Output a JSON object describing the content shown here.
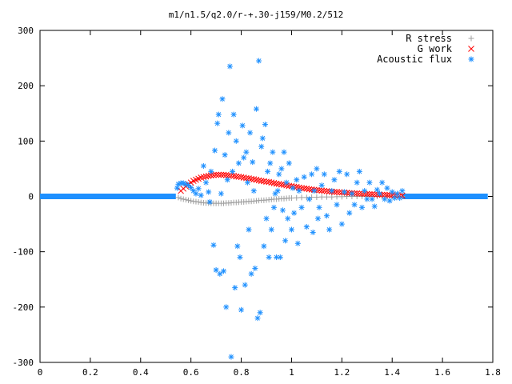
{
  "chart_data": {
    "type": "scatter",
    "title": "m1/n1.5/q2.0/r-+.30-j159/M0.2/512",
    "xlabel": "",
    "ylabel": "",
    "xlim": [
      0,
      1.8
    ],
    "ylim": [
      -300,
      300
    ],
    "x_ticks": [
      0,
      0.2,
      0.4,
      0.6,
      0.8,
      1,
      1.2,
      1.4,
      1.6,
      1.8
    ],
    "x_tick_labels": [
      "0",
      "0.2",
      "0.4",
      "0.6",
      "0.8",
      "1",
      "1.2",
      "1.4",
      "1.6",
      "1.8"
    ],
    "y_ticks": [
      -300,
      -200,
      -100,
      0,
      100,
      200,
      300
    ],
    "y_tick_labels": [
      "-300",
      "-200",
      "-100",
      "0",
      "100",
      "200",
      "300"
    ],
    "grid": false,
    "legend_position": "top-right",
    "series": [
      {
        "name": "R stress",
        "marker": "plus",
        "color": "#a0a0a0",
        "points": [
          [
            0.55,
            -2
          ],
          [
            0.56,
            -4
          ],
          [
            0.57,
            -5
          ],
          [
            0.58,
            -6
          ],
          [
            0.59,
            -7
          ],
          [
            0.6,
            -8
          ],
          [
            0.61,
            -9
          ],
          [
            0.62,
            -9.5
          ],
          [
            0.63,
            -10
          ],
          [
            0.64,
            -11
          ],
          [
            0.65,
            -11.5
          ],
          [
            0.66,
            -12
          ],
          [
            0.67,
            -12
          ],
          [
            0.68,
            -12.5
          ],
          [
            0.69,
            -12.5
          ],
          [
            0.7,
            -12.5
          ],
          [
            0.71,
            -12.5
          ],
          [
            0.72,
            -12.5
          ],
          [
            0.73,
            -12.5
          ],
          [
            0.74,
            -12
          ],
          [
            0.75,
            -12
          ],
          [
            0.76,
            -11.5
          ],
          [
            0.77,
            -11
          ],
          [
            0.78,
            -11
          ],
          [
            0.79,
            -10.5
          ],
          [
            0.8,
            -10
          ],
          [
            0.81,
            -10
          ],
          [
            0.82,
            -9.5
          ],
          [
            0.83,
            -9
          ],
          [
            0.84,
            -9
          ],
          [
            0.85,
            -8.5
          ],
          [
            0.86,
            -8
          ],
          [
            0.87,
            -7.5
          ],
          [
            0.88,
            -7
          ],
          [
            0.89,
            -7
          ],
          [
            0.9,
            -6.5
          ],
          [
            0.91,
            -6
          ],
          [
            0.92,
            -5.5
          ],
          [
            0.93,
            -5
          ],
          [
            0.94,
            -5
          ],
          [
            0.95,
            -4.5
          ],
          [
            0.96,
            -4
          ],
          [
            0.97,
            -4
          ],
          [
            0.98,
            -3.5
          ],
          [
            0.99,
            -3
          ],
          [
            1.0,
            -3
          ],
          [
            1.02,
            -2.5
          ],
          [
            1.04,
            -2
          ],
          [
            1.06,
            -2
          ],
          [
            1.08,
            -1.5
          ],
          [
            1.1,
            -1.5
          ],
          [
            1.12,
            -1
          ],
          [
            1.14,
            -1
          ],
          [
            1.16,
            -1
          ],
          [
            1.18,
            -0.5
          ],
          [
            1.2,
            -0.5
          ],
          [
            1.22,
            0
          ],
          [
            1.24,
            0
          ],
          [
            1.26,
            0
          ],
          [
            1.28,
            0
          ],
          [
            1.3,
            0
          ],
          [
            1.32,
            0
          ],
          [
            1.34,
            0
          ],
          [
            1.36,
            0
          ],
          [
            1.38,
            0
          ],
          [
            1.4,
            0
          ],
          [
            1.42,
            0
          ],
          [
            1.44,
            0
          ]
        ]
      },
      {
        "name": "G work",
        "marker": "cross",
        "color": "#ff0000",
        "points": [
          [
            0.56,
            10
          ],
          [
            0.57,
            14
          ],
          [
            0.58,
            18
          ],
          [
            0.59,
            22
          ],
          [
            0.6,
            25
          ],
          [
            0.61,
            28
          ],
          [
            0.62,
            30
          ],
          [
            0.63,
            32
          ],
          [
            0.64,
            34
          ],
          [
            0.65,
            35
          ],
          [
            0.66,
            36
          ],
          [
            0.67,
            37
          ],
          [
            0.68,
            38
          ],
          [
            0.69,
            38.5
          ],
          [
            0.7,
            39
          ],
          [
            0.71,
            39
          ],
          [
            0.72,
            39
          ],
          [
            0.73,
            39
          ],
          [
            0.74,
            38.5
          ],
          [
            0.75,
            38
          ],
          [
            0.76,
            37.5
          ],
          [
            0.77,
            37
          ],
          [
            0.78,
            36
          ],
          [
            0.79,
            35.5
          ],
          [
            0.8,
            35
          ],
          [
            0.81,
            34
          ],
          [
            0.82,
            33
          ],
          [
            0.83,
            32.5
          ],
          [
            0.84,
            31.5
          ],
          [
            0.85,
            31
          ],
          [
            0.86,
            30
          ],
          [
            0.87,
            29
          ],
          [
            0.88,
            28
          ],
          [
            0.89,
            27.5
          ],
          [
            0.9,
            26.5
          ],
          [
            0.91,
            26
          ],
          [
            0.92,
            25
          ],
          [
            0.93,
            24
          ],
          [
            0.94,
            23
          ],
          [
            0.95,
            22.5
          ],
          [
            0.96,
            21.5
          ],
          [
            0.97,
            21
          ],
          [
            0.98,
            20
          ],
          [
            0.99,
            19
          ],
          [
            1.0,
            18.5
          ],
          [
            1.01,
            17.5
          ],
          [
            1.02,
            17
          ],
          [
            1.03,
            16
          ],
          [
            1.04,
            15
          ],
          [
            1.05,
            14.5
          ],
          [
            1.06,
            14
          ],
          [
            1.07,
            13
          ],
          [
            1.08,
            12.5
          ],
          [
            1.09,
            12
          ],
          [
            1.1,
            11.5
          ],
          [
            1.11,
            11
          ],
          [
            1.12,
            10.5
          ],
          [
            1.13,
            10
          ],
          [
            1.14,
            9.5
          ],
          [
            1.15,
            9
          ],
          [
            1.16,
            8.5
          ],
          [
            1.17,
            8
          ],
          [
            1.18,
            8
          ],
          [
            1.19,
            7.5
          ],
          [
            1.2,
            7
          ],
          [
            1.21,
            7
          ],
          [
            1.22,
            6.5
          ],
          [
            1.23,
            6
          ],
          [
            1.24,
            6
          ],
          [
            1.25,
            5.5
          ],
          [
            1.26,
            5.5
          ],
          [
            1.27,
            5
          ],
          [
            1.28,
            5
          ],
          [
            1.29,
            4.5
          ],
          [
            1.3,
            4.5
          ],
          [
            1.31,
            4
          ],
          [
            1.32,
            4
          ],
          [
            1.33,
            3.5
          ],
          [
            1.34,
            3.5
          ],
          [
            1.35,
            3
          ],
          [
            1.36,
            3
          ],
          [
            1.37,
            3
          ],
          [
            1.38,
            2.5
          ],
          [
            1.39,
            2.5
          ],
          [
            1.4,
            2
          ],
          [
            1.41,
            2
          ],
          [
            1.42,
            2
          ],
          [
            1.43,
            1.5
          ],
          [
            1.44,
            1.5
          ]
        ]
      },
      {
        "name": "Acoustic flux",
        "marker": "star",
        "color": "#1e90ff",
        "points": [
          [
            0.545,
            15
          ],
          [
            0.55,
            22
          ],
          [
            0.56,
            24
          ],
          [
            0.57,
            24
          ],
          [
            0.58,
            22
          ],
          [
            0.59,
            20
          ],
          [
            0.6,
            16
          ],
          [
            0.61,
            10
          ],
          [
            0.62,
            5
          ],
          [
            0.63,
            14
          ],
          [
            0.64,
            2
          ],
          [
            0.65,
            55
          ],
          [
            0.66,
            25
          ],
          [
            0.67,
            8
          ],
          [
            0.675,
            -10
          ],
          [
            0.68,
            45
          ],
          [
            0.69,
            -88
          ],
          [
            0.695,
            83
          ],
          [
            0.7,
            -133
          ],
          [
            0.705,
            132
          ],
          [
            0.71,
            148
          ],
          [
            0.715,
            -140
          ],
          [
            0.72,
            5
          ],
          [
            0.725,
            176
          ],
          [
            0.73,
            -135
          ],
          [
            0.735,
            75
          ],
          [
            0.74,
            -200
          ],
          [
            0.745,
            30
          ],
          [
            0.75,
            115
          ],
          [
            0.755,
            235
          ],
          [
            0.76,
            -290
          ],
          [
            0.765,
            45
          ],
          [
            0.77,
            148
          ],
          [
            0.775,
            -165
          ],
          [
            0.78,
            100
          ],
          [
            0.785,
            -90
          ],
          [
            0.79,
            60
          ],
          [
            0.795,
            -110
          ],
          [
            0.8,
            -205
          ],
          [
            0.805,
            128
          ],
          [
            0.81,
            70
          ],
          [
            0.815,
            -160
          ],
          [
            0.82,
            80
          ],
          [
            0.825,
            25
          ],
          [
            0.83,
            -60
          ],
          [
            0.835,
            115
          ],
          [
            0.84,
            -140
          ],
          [
            0.845,
            62
          ],
          [
            0.85,
            10
          ],
          [
            0.855,
            -130
          ],
          [
            0.86,
            158
          ],
          [
            0.865,
            -220
          ],
          [
            0.87,
            245
          ],
          [
            0.875,
            -210
          ],
          [
            0.88,
            90
          ],
          [
            0.885,
            105
          ],
          [
            0.89,
            -90
          ],
          [
            0.895,
            130
          ],
          [
            0.9,
            -40
          ],
          [
            0.905,
            45
          ],
          [
            0.91,
            -110
          ],
          [
            0.915,
            60
          ],
          [
            0.92,
            -60
          ],
          [
            0.925,
            80
          ],
          [
            0.93,
            -20
          ],
          [
            0.935,
            5
          ],
          [
            0.94,
            -110
          ],
          [
            0.945,
            10
          ],
          [
            0.95,
            40
          ],
          [
            0.955,
            -110
          ],
          [
            0.96,
            50
          ],
          [
            0.965,
            -25
          ],
          [
            0.97,
            80
          ],
          [
            0.975,
            -80
          ],
          [
            0.98,
            25
          ],
          [
            0.985,
            -40
          ],
          [
            0.99,
            60
          ],
          [
            1.0,
            -60
          ],
          [
            1.005,
            15
          ],
          [
            1.01,
            -30
          ],
          [
            1.02,
            30
          ],
          [
            1.025,
            -85
          ],
          [
            1.03,
            10
          ],
          [
            1.04,
            -20
          ],
          [
            1.05,
            35
          ],
          [
            1.06,
            -55
          ],
          [
            1.07,
            -5
          ],
          [
            1.08,
            40
          ],
          [
            1.085,
            -65
          ],
          [
            1.09,
            10
          ],
          [
            1.1,
            50
          ],
          [
            1.105,
            -40
          ],
          [
            1.11,
            -20
          ],
          [
            1.12,
            20
          ],
          [
            1.13,
            40
          ],
          [
            1.14,
            -35
          ],
          [
            1.15,
            -60
          ],
          [
            1.16,
            10
          ],
          [
            1.17,
            30
          ],
          [
            1.18,
            -15
          ],
          [
            1.19,
            45
          ],
          [
            1.2,
            -50
          ],
          [
            1.21,
            8
          ],
          [
            1.22,
            40
          ],
          [
            1.23,
            -30
          ],
          [
            1.24,
            5
          ],
          [
            1.25,
            -15
          ],
          [
            1.26,
            25
          ],
          [
            1.27,
            45
          ],
          [
            1.28,
            -20
          ],
          [
            1.29,
            10
          ],
          [
            1.3,
            -5
          ],
          [
            1.31,
            25
          ],
          [
            1.32,
            -5
          ],
          [
            1.33,
            -18
          ],
          [
            1.34,
            12
          ],
          [
            1.35,
            5
          ],
          [
            1.36,
            25
          ],
          [
            1.37,
            -5
          ],
          [
            1.38,
            15
          ],
          [
            1.39,
            -8
          ],
          [
            1.4,
            8
          ],
          [
            1.41,
            -3
          ],
          [
            1.42,
            5
          ],
          [
            1.43,
            -3
          ],
          [
            1.44,
            10
          ]
        ],
        "baseline": {
          "x_from": 0,
          "x_to": 0.54,
          "x_from_2": 1.44,
          "x_to_2": 1.78,
          "y": 0
        }
      }
    ],
    "legend": [
      {
        "label": "R stress",
        "color": "#a0a0a0",
        "marker": "plus"
      },
      {
        "label": "G work",
        "color": "#ff0000",
        "marker": "cross"
      },
      {
        "label": "Acoustic flux",
        "color": "#1e90ff",
        "marker": "star"
      }
    ]
  }
}
